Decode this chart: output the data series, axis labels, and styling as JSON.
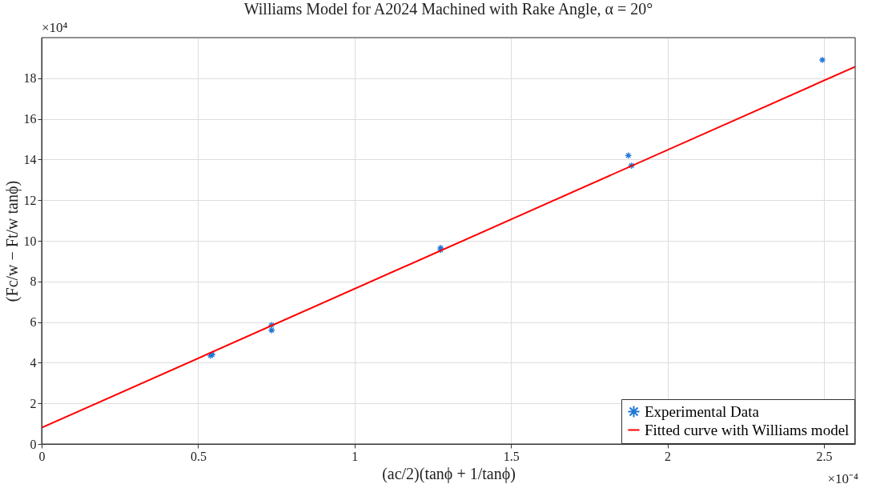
{
  "chart_data": {
    "type": "scatter",
    "title": "Williams Model for A2024 Machined with Rake Angle, α = 20°",
    "xlabel": "(ac/2)(tanϕ + 1/tanϕ)",
    "ylabel": "(Fc/w − Ft/w tanϕ)",
    "series": [
      {
        "name": "Experimental Data",
        "color": "#1f77d4",
        "marker": "cross",
        "x": [
          0.54,
          0.545,
          0.735,
          0.735,
          1.275,
          1.275,
          1.875,
          1.885,
          2.495
        ],
        "values": [
          4.35,
          4.4,
          5.6,
          5.85,
          9.55,
          9.65,
          14.2,
          13.7,
          18.9
        ]
      },
      {
        "name": "Fitted curve with Williams model",
        "type": "line",
        "color": "#ff0000",
        "line_style": "solid",
        "x": [
          0,
          2.6
        ],
        "values": [
          0.8,
          18.57
        ]
      }
    ],
    "xlim": [
      0,
      2.6
    ],
    "xticks": [
      0,
      0.5,
      1,
      1.5,
      2,
      2.5
    ],
    "ylim": [
      0,
      20
    ],
    "yticks": [
      0,
      2,
      4,
      6,
      8,
      10,
      12,
      14,
      16,
      18
    ],
    "annotations": [
      "×10⁴",
      "×10⁻⁴"
    ],
    "grid": true,
    "legend": "bottom right"
  }
}
